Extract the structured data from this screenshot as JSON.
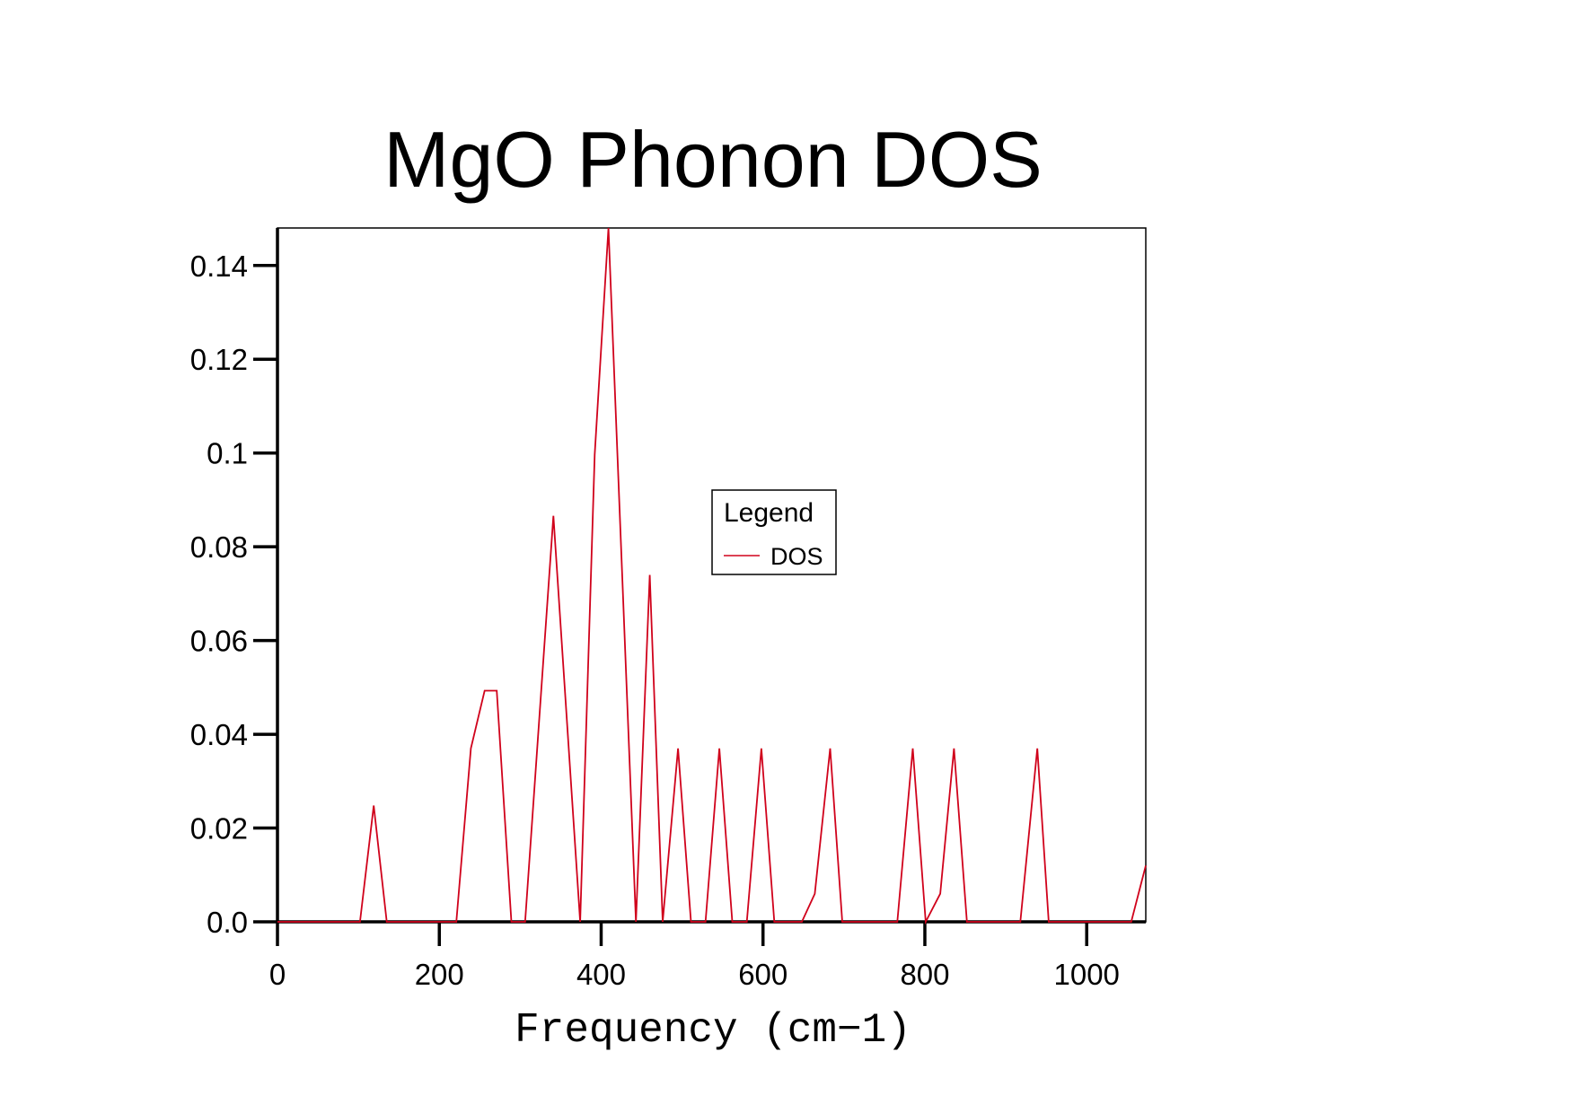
{
  "chart_data": {
    "type": "line",
    "title": "MgO Phonon DOS",
    "xlabel": "Frequency (cm−1)",
    "ylabel": "",
    "xlim": [
      0,
      1073
    ],
    "ylim": [
      0,
      0.148
    ],
    "xticks": [
      0,
      200,
      400,
      600,
      800,
      1000
    ],
    "xtick_labels": [
      "0",
      "200",
      "400",
      "600",
      "800",
      "1000"
    ],
    "yticks": [
      0,
      0.02,
      0.04,
      0.06,
      0.08,
      0.1,
      0.12,
      0.14
    ],
    "ytick_labels": [
      "0.0",
      "0.02",
      "0.04",
      "0.06",
      "0.08",
      "0.1",
      "0.12",
      "0.14"
    ],
    "grid": false,
    "legend": {
      "title": "Legend",
      "placement": "center",
      "entries": [
        "DOS"
      ]
    },
    "series": [
      {
        "name": "DOS",
        "color": "#d0021b",
        "x": [
          0,
          102,
          119,
          135,
          221,
          239,
          256,
          271,
          289,
          306,
          341,
          374,
          392,
          409,
          443,
          460,
          476,
          495,
          511,
          529,
          546,
          562,
          580,
          598,
          614,
          648,
          664,
          683,
          698,
          766,
          785,
          801,
          819,
          836,
          852,
          918,
          939,
          953,
          1055,
          1073
        ],
        "y": [
          0,
          0,
          0.0248,
          0,
          0,
          0.037,
          0.0493,
          0.0493,
          0,
          0,
          0.0866,
          0,
          0.0997,
          0.148,
          0,
          0.074,
          0,
          0.037,
          0,
          0,
          0.037,
          0,
          0,
          0.037,
          0,
          0,
          0.006,
          0.037,
          0,
          0,
          0.037,
          0,
          0.006,
          0.037,
          0,
          0,
          0.037,
          0,
          0,
          0.012
        ]
      }
    ]
  }
}
